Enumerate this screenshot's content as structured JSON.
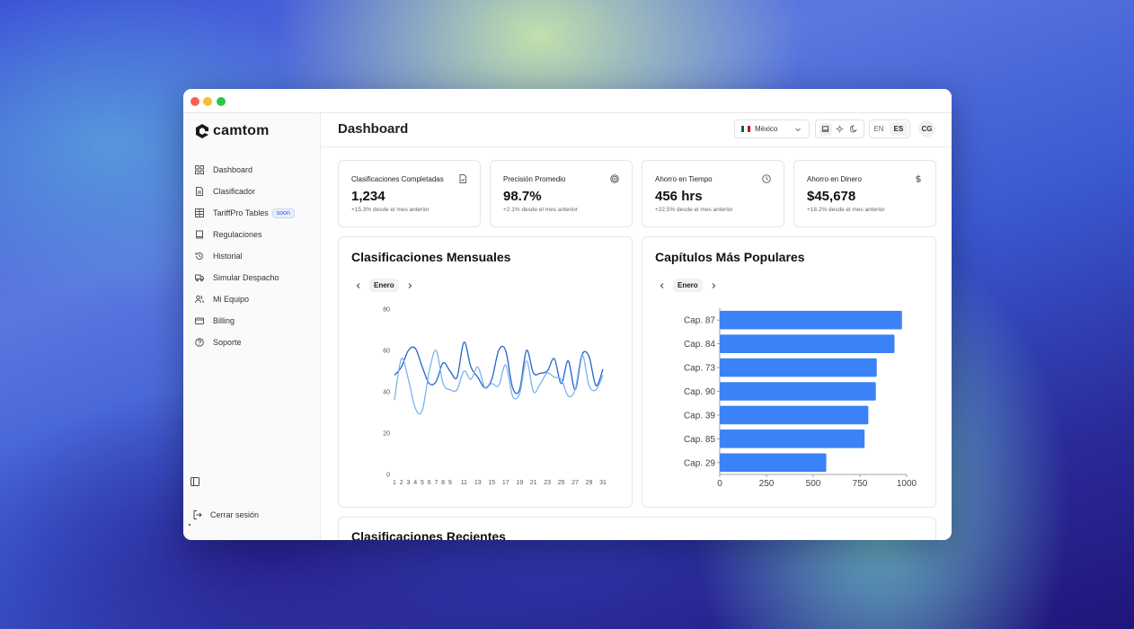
{
  "app": {
    "logo_text": "camtom"
  },
  "sidebar": {
    "items": [
      {
        "label": "Dashboard",
        "icon": "grid-icon"
      },
      {
        "label": "Clasificador",
        "icon": "document-icon"
      },
      {
        "label": "TariffPro Tables",
        "icon": "table-icon",
        "badge": "soon"
      },
      {
        "label": "Regulaciones",
        "icon": "book-icon"
      },
      {
        "label": "Historial",
        "icon": "history-icon"
      },
      {
        "label": "Simular Despacho",
        "icon": "truck-icon"
      },
      {
        "label": "Mi Equipo",
        "icon": "users-icon"
      },
      {
        "label": "Billing",
        "icon": "credit-card-icon"
      },
      {
        "label": "Soporte",
        "icon": "help-icon"
      }
    ],
    "logout_label": "Cerrar sesión"
  },
  "header": {
    "title": "Dashboard",
    "country": "México",
    "lang_en": "EN",
    "lang_es": "ES",
    "avatar_initials": "CG"
  },
  "stats": [
    {
      "label": "Clasificaciones Completadas",
      "value": "1,234",
      "change": "+15.3% desde el mes anterior",
      "icon": "file-check-icon"
    },
    {
      "label": "Precisión Promedio",
      "value": "98.7%",
      "change": "+2.1% desde el mes anterior",
      "icon": "target-icon"
    },
    {
      "label": "Ahorro en Tiempo",
      "value": "456 hrs",
      "change": "+22.5% desde el mes anterior",
      "icon": "clock-icon"
    },
    {
      "label": "Ahorro en Dinero",
      "value": "$45,678",
      "change": "+18.2% desde el mes anterior",
      "icon": "dollar-icon"
    }
  ],
  "monthly_card": {
    "title": "Clasificaciones Mensuales",
    "month": "Enero"
  },
  "chapters_card": {
    "title": "Capítulos Más Populares",
    "month": "Enero"
  },
  "recent_card": {
    "title": "Clasificaciones Recientes"
  },
  "colors": {
    "accent": "#3b82f6",
    "line_dark": "#2563c9",
    "line_light": "#7ab3f0"
  },
  "chart_data": [
    {
      "type": "line",
      "x": [
        1,
        2,
        3,
        4,
        5,
        6,
        7,
        8,
        9,
        10,
        11,
        12,
        13,
        14,
        15,
        16,
        17,
        18,
        19,
        20,
        21,
        22,
        23,
        24,
        25,
        26,
        27,
        28,
        29,
        30,
        31
      ],
      "x_tick_labels": [
        "1",
        "2",
        "3",
        "4",
        "5",
        "6",
        "7",
        "8",
        "9",
        "11",
        "13",
        "15",
        "17",
        "19",
        "21",
        "23",
        "25",
        "27",
        "29",
        "31"
      ],
      "ylim": [
        0,
        80
      ],
      "y_ticks": [
        0,
        20,
        40,
        60,
        80
      ],
      "series": [
        {
          "values": [
            48,
            52,
            60,
            61,
            52,
            44,
            45,
            54,
            50,
            47,
            64,
            52,
            47,
            42,
            46,
            60,
            60,
            42,
            41,
            60,
            49,
            49,
            50,
            56,
            44,
            55,
            41,
            58,
            57,
            43,
            51
          ]
        },
        {
          "values": [
            36,
            56,
            46,
            32,
            31,
            50,
            60,
            44,
            41,
            41,
            50,
            46,
            52,
            42,
            44,
            43,
            53,
            38,
            39,
            55,
            40,
            44,
            49,
            47,
            46,
            38,
            41,
            58,
            43,
            41,
            48
          ]
        }
      ]
    },
    {
      "type": "bar",
      "orientation": "horizontal",
      "categories": [
        "Cap. 87",
        "Cap. 84",
        "Cap. 73",
        "Cap. 90",
        "Cap. 39",
        "Cap. 85",
        "Cap. 29"
      ],
      "values": [
        975,
        935,
        840,
        835,
        795,
        775,
        570
      ],
      "xlim": [
        0,
        1000
      ],
      "x_ticks": [
        0,
        250,
        500,
        750,
        1000
      ]
    }
  ]
}
